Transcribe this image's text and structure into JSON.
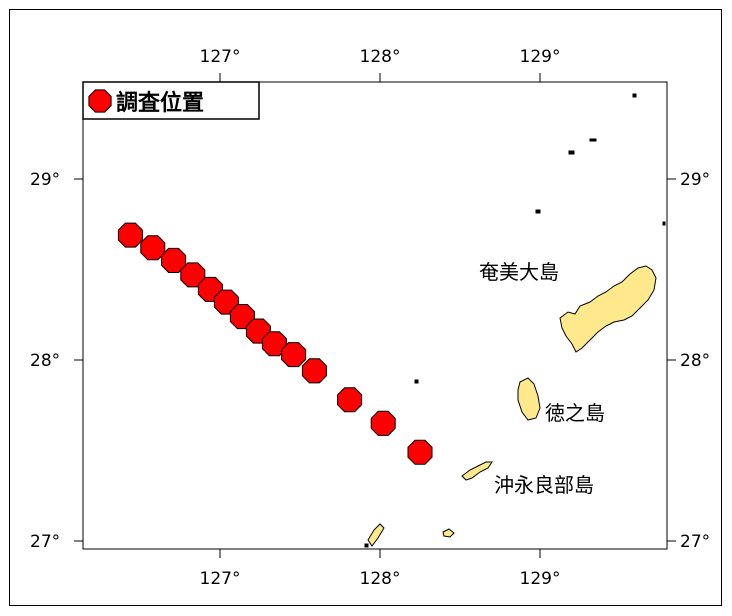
{
  "legend": {
    "label": "調査位置",
    "marker_color": "#ff0000"
  },
  "axes": {
    "lon_ticks": [
      "127°",
      "128°",
      "129°"
    ],
    "lat_ticks": [
      "29°",
      "28°",
      "27°"
    ]
  },
  "places": {
    "amami": "奄美大島",
    "tokuno": "徳之島",
    "okinoerabu": "沖永良部島"
  },
  "colors": {
    "land": "#ffe98c",
    "station": "#ff0000",
    "outline": "#000000"
  },
  "chart_data": {
    "type": "scatter",
    "xlim": [
      126.15,
      129.8
    ],
    "ylim": [
      26.94,
      29.52
    ],
    "stations": [
      {
        "lon": 126.44,
        "lat": 28.69
      },
      {
        "lon": 126.58,
        "lat": 28.62
      },
      {
        "lon": 126.71,
        "lat": 28.55
      },
      {
        "lon": 126.83,
        "lat": 28.47
      },
      {
        "lon": 126.94,
        "lat": 28.39
      },
      {
        "lon": 127.04,
        "lat": 28.32
      },
      {
        "lon": 127.14,
        "lat": 28.24
      },
      {
        "lon": 127.24,
        "lat": 28.16
      },
      {
        "lon": 127.34,
        "lat": 28.09
      },
      {
        "lon": 127.46,
        "lat": 28.03
      },
      {
        "lon": 127.59,
        "lat": 27.94
      },
      {
        "lon": 127.81,
        "lat": 27.78
      },
      {
        "lon": 128.02,
        "lat": 27.65
      },
      {
        "lon": 128.25,
        "lat": 27.49
      }
    ]
  }
}
